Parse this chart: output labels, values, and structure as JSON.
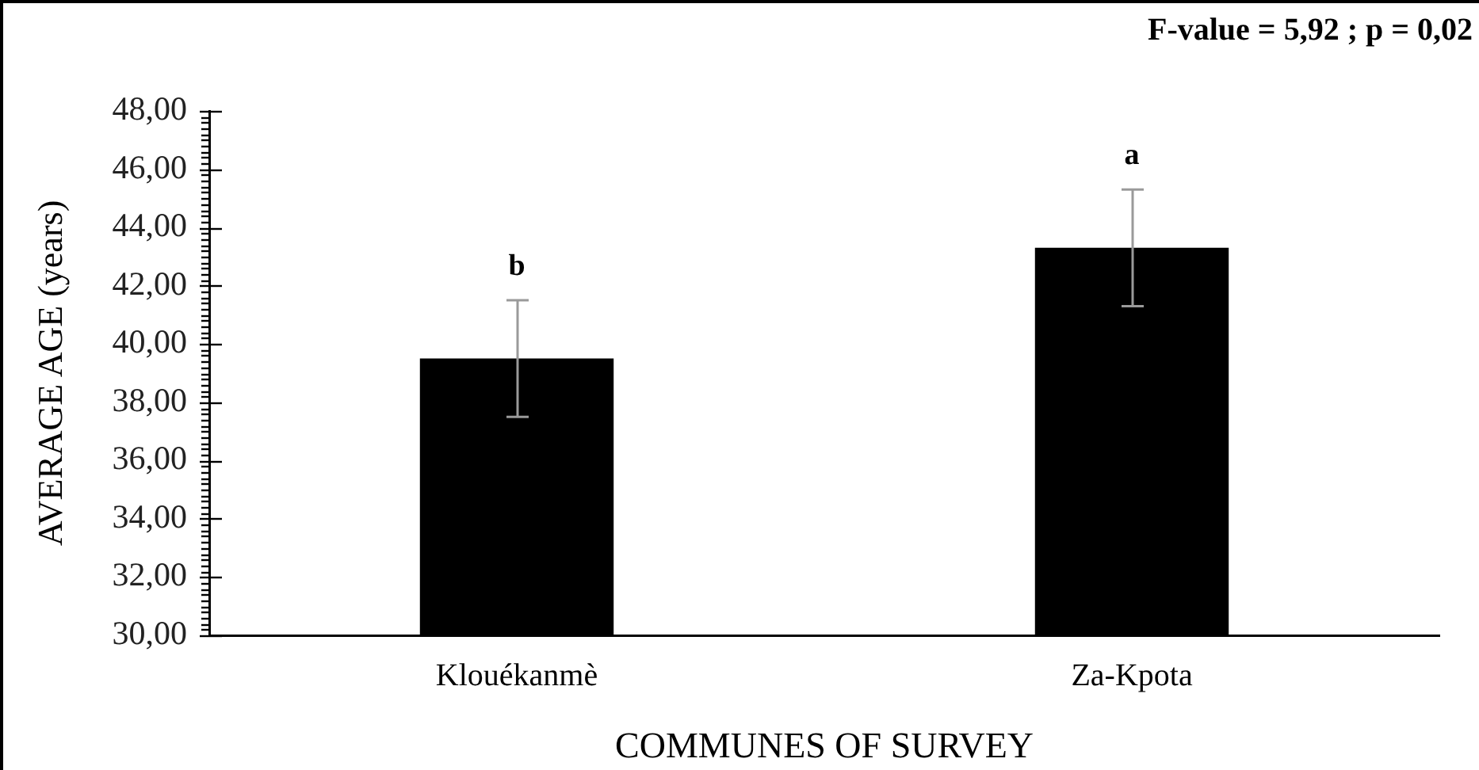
{
  "chart_data": {
    "type": "bar",
    "xlabel": "COMMUNES OF SURVEY",
    "ylabel": "AVERAGE AGE (years)",
    "categories": [
      "Klouékanmè",
      "Za-Kpota"
    ],
    "values": [
      39.5,
      43.3
    ],
    "errors": [
      2.0,
      2.0
    ],
    "color": "#000000",
    "ylim": [
      30,
      48
    ],
    "yticks": [
      {
        "value": 30,
        "label": "30,00"
      },
      {
        "value": 30.2,
        "label": null
      },
      {
        "value": 30.4,
        "label": null
      },
      {
        "value": 30.6,
        "label": null
      },
      {
        "value": 30.8,
        "label": null
      },
      {
        "value": 31,
        "label": null
      },
      {
        "value": 31.2,
        "label": null
      },
      {
        "value": 31.4,
        "label": null
      },
      {
        "value": 31.6,
        "label": null
      },
      {
        "value": 31.8,
        "label": null
      },
      {
        "value": 32,
        "label": "32,00"
      },
      {
        "value": 32.2,
        "label": null
      },
      {
        "value": 32.4,
        "label": null
      },
      {
        "value": 32.6,
        "label": null
      },
      {
        "value": 32.8,
        "label": null
      },
      {
        "value": 33,
        "label": null
      },
      {
        "value": 33.2,
        "label": null
      },
      {
        "value": 33.4,
        "label": null
      },
      {
        "value": 33.6,
        "label": null
      },
      {
        "value": 33.8,
        "label": null
      },
      {
        "value": 34,
        "label": "34,00"
      },
      {
        "value": 34.2,
        "label": null
      },
      {
        "value": 34.4,
        "label": null
      },
      {
        "value": 34.6,
        "label": null
      },
      {
        "value": 34.8,
        "label": null
      },
      {
        "value": 35,
        "label": null
      },
      {
        "value": 35.2,
        "label": null
      },
      {
        "value": 35.4,
        "label": null
      },
      {
        "value": 35.6,
        "label": null
      },
      {
        "value": 35.8,
        "label": null
      },
      {
        "value": 36,
        "label": "36,00"
      },
      {
        "value": 36.2,
        "label": null
      },
      {
        "value": 36.4,
        "label": null
      },
      {
        "value": 36.6,
        "label": null
      },
      {
        "value": 36.8,
        "label": null
      },
      {
        "value": 37,
        "label": null
      },
      {
        "value": 37.2,
        "label": null
      },
      {
        "value": 37.4,
        "label": null
      },
      {
        "value": 37.6,
        "label": null
      },
      {
        "value": 37.8,
        "label": null
      },
      {
        "value": 38,
        "label": "38,00"
      },
      {
        "value": 38.2,
        "label": null
      },
      {
        "value": 38.4,
        "label": null
      },
      {
        "value": 38.6,
        "label": null
      },
      {
        "value": 38.8,
        "label": null
      },
      {
        "value": 39,
        "label": null
      },
      {
        "value": 39.2,
        "label": null
      },
      {
        "value": 39.4,
        "label": null
      },
      {
        "value": 39.6,
        "label": null
      },
      {
        "value": 39.8,
        "label": null
      },
      {
        "value": 40,
        "label": "40,00"
      },
      {
        "value": 40.2,
        "label": null
      },
      {
        "value": 40.4,
        "label": null
      },
      {
        "value": 40.6,
        "label": null
      },
      {
        "value": 40.8,
        "label": null
      },
      {
        "value": 41,
        "label": null
      },
      {
        "value": 41.2,
        "label": null
      },
      {
        "value": 41.4,
        "label": null
      },
      {
        "value": 41.6,
        "label": null
      },
      {
        "value": 41.8,
        "label": null
      },
      {
        "value": 42,
        "label": "42,00"
      },
      {
        "value": 42.2,
        "label": null
      },
      {
        "value": 42.4,
        "label": null
      },
      {
        "value": 42.6,
        "label": null
      },
      {
        "value": 42.8,
        "label": null
      },
      {
        "value": 43,
        "label": null
      },
      {
        "value": 43.2,
        "label": null
      },
      {
        "value": 43.4,
        "label": null
      },
      {
        "value": 43.6,
        "label": null
      },
      {
        "value": 43.8,
        "label": null
      },
      {
        "value": 44,
        "label": "44,00"
      },
      {
        "value": 44.2,
        "label": null
      },
      {
        "value": 44.4,
        "label": null
      },
      {
        "value": 44.6,
        "label": null
      },
      {
        "value": 44.8,
        "label": null
      },
      {
        "value": 45,
        "label": null
      },
      {
        "value": 45.2,
        "label": null
      },
      {
        "value": 45.4,
        "label": null
      },
      {
        "value": 45.6,
        "label": null
      },
      {
        "value": 45.8,
        "label": null
      },
      {
        "value": 46,
        "label": "46,00"
      },
      {
        "value": 46.2,
        "label": null
      },
      {
        "value": 46.4,
        "label": null
      },
      {
        "value": 46.6,
        "label": null
      },
      {
        "value": 46.8,
        "label": null
      },
      {
        "value": 47,
        "label": null
      },
      {
        "value": 47.2,
        "label": null
      },
      {
        "value": 47.4,
        "label": null
      },
      {
        "value": 47.6,
        "label": null
      },
      {
        "value": 47.8,
        "label": null
      },
      {
        "value": 48,
        "label": "48,00"
      }
    ],
    "grid": false,
    "annotations": [
      "F-value = 5,92 ; p = 0,02",
      "b",
      "a"
    ]
  }
}
